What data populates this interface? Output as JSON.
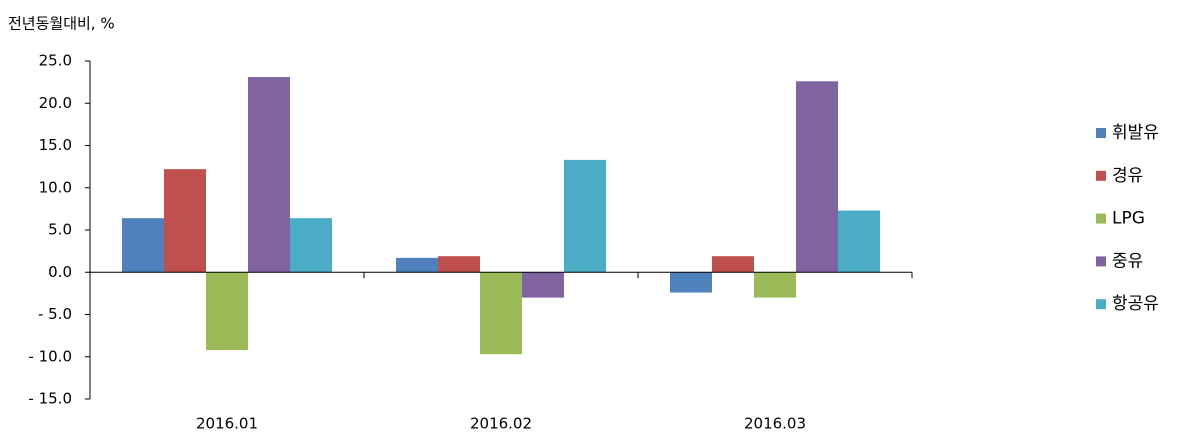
{
  "chart_data": {
    "type": "bar",
    "y_axis_label": "전년동월대비, %",
    "categories": [
      "2016.01",
      "2016.02",
      "2016.03"
    ],
    "series": [
      {
        "name": "휘발유",
        "color": "#4f81bd",
        "values": [
          6.4,
          1.7,
          -2.4
        ]
      },
      {
        "name": "경유",
        "color": "#c0504d",
        "values": [
          12.2,
          1.9,
          1.9
        ]
      },
      {
        "name": "LPG",
        "color": "#9bbb59",
        "values": [
          -9.2,
          -9.7,
          -3.0
        ]
      },
      {
        "name": "중유",
        "color": "#8064a2",
        "values": [
          23.1,
          -3.0,
          22.6
        ]
      },
      {
        "name": "항공유",
        "color": "#4bacc6",
        "values": [
          6.4,
          13.3,
          7.3
        ]
      }
    ],
    "ylim": [
      -15,
      25
    ],
    "yticks": [
      {
        "value": 25,
        "label": "25.0"
      },
      {
        "value": 20,
        "label": "20.0"
      },
      {
        "value": 15,
        "label": "15.0"
      },
      {
        "value": 10,
        "label": "10.0"
      },
      {
        "value": 5,
        "label": "5.0"
      },
      {
        "value": 0,
        "label": "0.0"
      },
      {
        "value": -5,
        "label": "- 5.0"
      },
      {
        "value": -10,
        "label": "- 10.0"
      },
      {
        "value": -15,
        "label": "- 15.0"
      }
    ],
    "grid": false,
    "legend": "right"
  }
}
